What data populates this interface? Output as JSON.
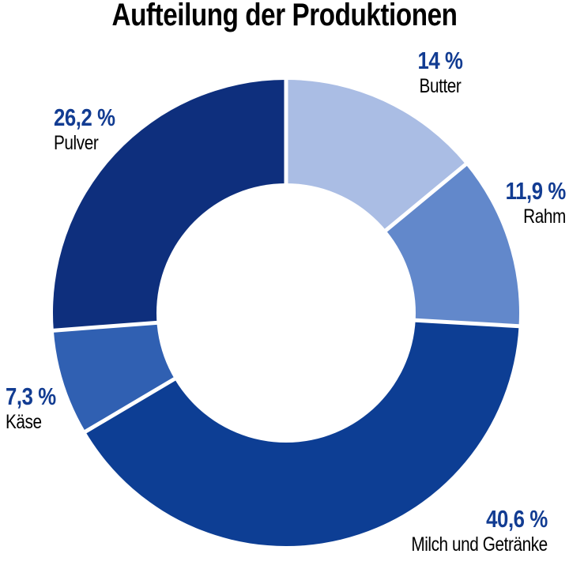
{
  "header": {
    "title": "Aufteilung der Produktionen"
  },
  "chart_data": {
    "type": "pie",
    "subtype": "donut",
    "title": "Aufteilung der Produktionen",
    "unit": "%",
    "start_angle_deg": 0,
    "direction": "clockwise",
    "inner_radius_ratio": 0.555,
    "separator_color": "#ffffff",
    "value_label_color": "#123c92",
    "name_label_color": "#000000",
    "legend_position": "around-chart",
    "segments": [
      {
        "id": "butter",
        "label": "Butter",
        "value": 14.0,
        "display_value": "14 %",
        "color": "#aabde4"
      },
      {
        "id": "rahm",
        "label": "Rahm",
        "value": 11.9,
        "display_value": "11,9 %",
        "color": "#6288cb"
      },
      {
        "id": "milch",
        "label": "Milch und Getränke",
        "value": 40.6,
        "display_value": "40,6 %",
        "color": "#0d3e94"
      },
      {
        "id": "kaese",
        "label": "Käse",
        "value": 7.3,
        "display_value": "7,3 %",
        "color": "#3060b2"
      },
      {
        "id": "pulver",
        "label": "Pulver",
        "value": 26.2,
        "display_value": "26,2 %",
        "color": "#0e2f7d"
      }
    ]
  }
}
